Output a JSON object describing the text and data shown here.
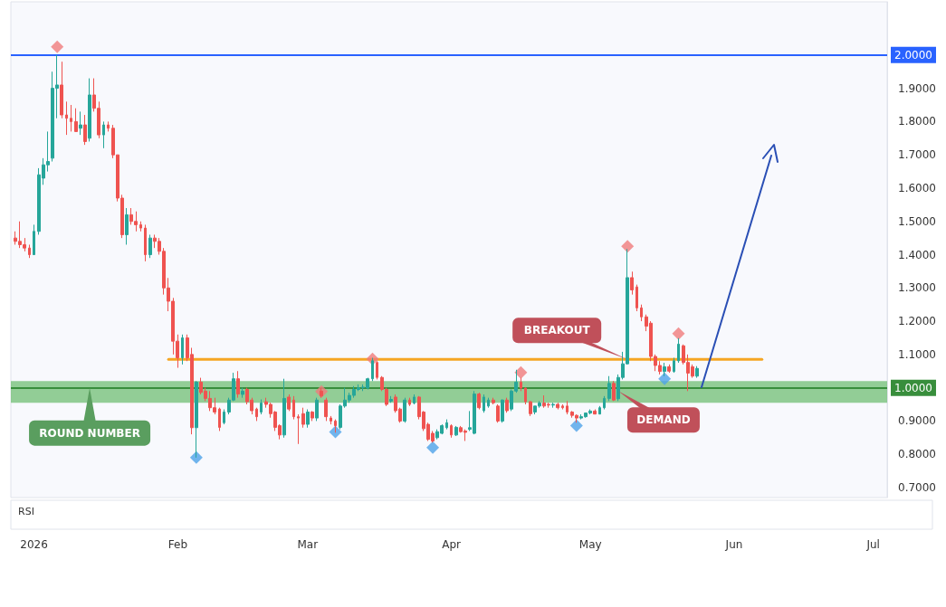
{
  "chart_data": {
    "type": "candlestick",
    "xlim": [
      "2025-12-27",
      "2026-07-04"
    ],
    "xticks": [
      {
        "value": "2026-01-01",
        "label": "2026"
      },
      {
        "value": "2026-02-01",
        "label": "Feb"
      },
      {
        "value": "2026-03-01",
        "label": "Mar"
      },
      {
        "value": "2026-04-01",
        "label": "Apr"
      },
      {
        "value": "2026-05-01",
        "label": "May"
      },
      {
        "value": "2026-06-01",
        "label": "Jun"
      },
      {
        "value": "2026-07-01",
        "label": "Jul"
      }
    ],
    "ylim": [
      0.67,
      2.16
    ],
    "yticks": [
      {
        "value": 0.7,
        "label": "0.7000"
      },
      {
        "value": 0.8,
        "label": "0.8000"
      },
      {
        "value": 0.9,
        "label": "0.9000"
      },
      {
        "value": 1.1,
        "label": "1.1000"
      },
      {
        "value": 1.2,
        "label": "1.2000"
      },
      {
        "value": 1.3,
        "label": "1.3000"
      },
      {
        "value": 1.4,
        "label": "1.4000"
      },
      {
        "value": 1.5,
        "label": "1.5000"
      },
      {
        "value": 1.6,
        "label": "1.6000"
      },
      {
        "value": 1.7,
        "label": "1.7000"
      },
      {
        "value": 1.8,
        "label": "1.8000"
      },
      {
        "value": 1.9,
        "label": "1.9000"
      }
    ],
    "series": [
      {
        "x": [
          "2025-12-28",
          "2025-12-29",
          "2025-12-30",
          "2025-12-31",
          "2026-01-01",
          "2026-01-02",
          "2026-01-03",
          "2026-01-04",
          "2026-01-05",
          "2026-01-06",
          "2026-01-07",
          "2026-01-08",
          "2026-01-09",
          "2026-01-10",
          "2026-01-11",
          "2026-01-12",
          "2026-01-13",
          "2026-01-14",
          "2026-01-15",
          "2026-01-16",
          "2026-01-17",
          "2026-01-18",
          "2026-01-19",
          "2026-01-20",
          "2026-01-21",
          "2026-01-22",
          "2026-01-23",
          "2026-01-24",
          "2026-01-25",
          "2026-01-26",
          "2026-01-27",
          "2026-01-28",
          "2026-01-29",
          "2026-01-30",
          "2026-01-31",
          "2026-02-01",
          "2026-02-02",
          "2026-02-03",
          "2026-02-04",
          "2026-02-05",
          "2026-02-06",
          "2026-02-07",
          "2026-02-08",
          "2026-02-09",
          "2026-02-10",
          "2026-02-11",
          "2026-02-12",
          "2026-02-13",
          "2026-02-14",
          "2026-02-15",
          "2026-02-16",
          "2026-02-17",
          "2026-02-18",
          "2026-02-19",
          "2026-02-20",
          "2026-02-21",
          "2026-02-22",
          "2026-02-23",
          "2026-02-24",
          "2026-02-25",
          "2026-02-26",
          "2026-02-27",
          "2026-02-28",
          "2026-03-01",
          "2026-03-02",
          "2026-03-03",
          "2026-03-04",
          "2026-03-05",
          "2026-03-06",
          "2026-03-07",
          "2026-03-08",
          "2026-03-09",
          "2026-03-10",
          "2026-03-11",
          "2026-03-12",
          "2026-03-13",
          "2026-03-14",
          "2026-03-15",
          "2026-03-16",
          "2026-03-17",
          "2026-03-18",
          "2026-03-19",
          "2026-03-20",
          "2026-03-21",
          "2026-03-22",
          "2026-03-23",
          "2026-03-24",
          "2026-03-25",
          "2026-03-26",
          "2026-03-27",
          "2026-03-28",
          "2026-03-29",
          "2026-03-30",
          "2026-03-31",
          "2026-04-01",
          "2026-04-02",
          "2026-04-03",
          "2026-04-04",
          "2026-04-05",
          "2026-04-06",
          "2026-04-07",
          "2026-04-08",
          "2026-04-09",
          "2026-04-10",
          "2026-04-11",
          "2026-04-12",
          "2026-04-13",
          "2026-04-14",
          "2026-04-15",
          "2026-04-16",
          "2026-04-17",
          "2026-04-18",
          "2026-04-19",
          "2026-04-20",
          "2026-04-21",
          "2026-04-22",
          "2026-04-23",
          "2026-04-24",
          "2026-04-25",
          "2026-04-26",
          "2026-04-27",
          "2026-04-28",
          "2026-04-29",
          "2026-04-30",
          "2026-05-01",
          "2026-05-02",
          "2026-05-03",
          "2026-05-04",
          "2026-05-05",
          "2026-05-06",
          "2026-05-07",
          "2026-05-08",
          "2026-05-09",
          "2026-05-10",
          "2026-05-11",
          "2026-05-12",
          "2026-05-13",
          "2026-05-14",
          "2026-05-15",
          "2026-05-16",
          "2026-05-17",
          "2026-05-18",
          "2026-05-19",
          "2026-05-20",
          "2026-05-21",
          "2026-05-22",
          "2026-05-23",
          "2026-05-24"
        ],
        "ohlc": [
          [
            1.45,
            1.47,
            1.43,
            1.44
          ],
          [
            1.44,
            1.5,
            1.42,
            1.43
          ],
          [
            1.43,
            1.45,
            1.41,
            1.42
          ],
          [
            1.42,
            1.43,
            1.39,
            1.4
          ],
          [
            1.4,
            1.49,
            1.4,
            1.47
          ],
          [
            1.47,
            1.66,
            1.46,
            1.64
          ],
          [
            1.63,
            1.69,
            1.61,
            1.67
          ],
          [
            1.67,
            1.77,
            1.65,
            1.68
          ],
          [
            1.69,
            1.95,
            1.68,
            1.9
          ],
          [
            1.9,
            2.0,
            1.81,
            1.91
          ],
          [
            1.91,
            1.98,
            1.81,
            1.82
          ],
          [
            1.82,
            1.86,
            1.76,
            1.81
          ],
          [
            1.81,
            1.85,
            1.77,
            1.8
          ],
          [
            1.8,
            1.84,
            1.77,
            1.77
          ],
          [
            1.78,
            1.83,
            1.76,
            1.79
          ],
          [
            1.79,
            1.82,
            1.73,
            1.74
          ],
          [
            1.75,
            1.93,
            1.74,
            1.88
          ],
          [
            1.88,
            1.93,
            1.83,
            1.84
          ],
          [
            1.84,
            1.86,
            1.75,
            1.76
          ],
          [
            1.76,
            1.8,
            1.72,
            1.79
          ],
          [
            1.79,
            1.8,
            1.77,
            1.78
          ],
          [
            1.78,
            1.79,
            1.69,
            1.7
          ],
          [
            1.7,
            1.7,
            1.56,
            1.57
          ],
          [
            1.57,
            1.58,
            1.45,
            1.46
          ],
          [
            1.46,
            1.54,
            1.43,
            1.52
          ],
          [
            1.52,
            1.54,
            1.49,
            1.5
          ],
          [
            1.5,
            1.53,
            1.47,
            1.49
          ],
          [
            1.49,
            1.5,
            1.47,
            1.48
          ],
          [
            1.48,
            1.49,
            1.38,
            1.4
          ],
          [
            1.4,
            1.46,
            1.39,
            1.45
          ],
          [
            1.45,
            1.46,
            1.42,
            1.44
          ],
          [
            1.44,
            1.45,
            1.4,
            1.41
          ],
          [
            1.41,
            1.42,
            1.28,
            1.3
          ],
          [
            1.3,
            1.33,
            1.23,
            1.26
          ],
          [
            1.26,
            1.27,
            1.1,
            1.14
          ],
          [
            1.14,
            1.16,
            1.06,
            1.09
          ],
          [
            1.09,
            1.16,
            1.07,
            1.15
          ],
          [
            1.15,
            1.16,
            1.08,
            1.09
          ],
          [
            1.1,
            1.12,
            0.86,
            0.88
          ],
          [
            0.88,
            1.02,
            0.79,
            1.017
          ],
          [
            1.017,
            1.03,
            0.98,
            0.986
          ],
          [
            0.99,
            1.0,
            0.96,
            0.968
          ],
          [
            0.968,
            0.99,
            0.93,
            0.94
          ],
          [
            0.94,
            0.97,
            0.92,
            0.927
          ],
          [
            0.936,
            0.94,
            0.87,
            0.881
          ],
          [
            0.895,
            0.935,
            0.89,
            0.927
          ],
          [
            0.927,
            0.97,
            0.92,
            0.963
          ],
          [
            0.963,
            1.045,
            0.96,
            1.027
          ],
          [
            1.027,
            1.05,
            0.97,
            0.981
          ],
          [
            0.98,
            1.0,
            0.97,
            0.99
          ],
          [
            0.995,
            1.0,
            0.95,
            0.958
          ],
          [
            0.963,
            0.97,
            0.92,
            0.931
          ],
          [
            0.936,
            0.94,
            0.9,
            0.913
          ],
          [
            0.927,
            0.965,
            0.92,
            0.954
          ],
          [
            0.958,
            0.97,
            0.94,
            0.95
          ],
          [
            0.95,
            0.955,
            0.91,
            0.922
          ],
          [
            0.927,
            0.93,
            0.87,
            0.881
          ],
          [
            0.886,
            0.89,
            0.845,
            0.858
          ],
          [
            0.858,
            1.027,
            0.85,
            0.968
          ],
          [
            0.972,
            0.98,
            0.93,
            0.936
          ],
          [
            0.963,
            0.975,
            0.905,
            0.913
          ],
          [
            0.913,
            0.92,
            0.831,
            0.909
          ],
          [
            0.922,
            0.94,
            0.88,
            0.89
          ],
          [
            0.89,
            0.935,
            0.88,
            0.927
          ],
          [
            0.927,
            0.93,
            0.9,
            0.909
          ],
          [
            0.909,
            0.97,
            0.9,
            0.963
          ],
          [
            0.99,
            1.0,
            0.97,
            0.975
          ],
          [
            0.963,
            0.97,
            0.9,
            0.913
          ],
          [
            0.909,
            0.915,
            0.89,
            0.9
          ],
          [
            0.9,
            0.905,
            0.865,
            0.886
          ],
          [
            0.881,
            0.95,
            0.875,
            0.945
          ],
          [
            0.945,
            1.0,
            0.94,
            0.963
          ],
          [
            0.963,
            0.985,
            0.955,
            0.977
          ],
          [
            0.977,
            1.005,
            0.97,
            0.995
          ],
          [
            0.995,
            1.01,
            0.99,
            1.0
          ],
          [
            1.0,
            1.01,
            0.99,
            1.002
          ],
          [
            0.999,
            1.03,
            0.995,
            1.027
          ],
          [
            1.027,
            1.09,
            1.02,
            1.081
          ],
          [
            1.076,
            1.08,
            1.025,
            1.031
          ],
          [
            1.031,
            1.035,
            0.99,
            0.995
          ],
          [
            0.995,
            1.0,
            0.945,
            0.95
          ],
          [
            0.96,
            0.975,
            0.955,
            0.965
          ],
          [
            0.972,
            0.98,
            0.925,
            0.931
          ],
          [
            0.936,
            0.94,
            0.895,
            0.9
          ],
          [
            0.9,
            0.97,
            0.895,
            0.963
          ],
          [
            0.963,
            0.97,
            0.945,
            0.95
          ],
          [
            0.954,
            0.98,
            0.95,
            0.972
          ],
          [
            0.972,
            0.975,
            0.905,
            0.913
          ],
          [
            0.927,
            0.93,
            0.87,
            0.877
          ],
          [
            0.89,
            0.895,
            0.84,
            0.845
          ],
          [
            0.863,
            0.87,
            0.835,
            0.84
          ],
          [
            0.85,
            0.875,
            0.845,
            0.868
          ],
          [
            0.863,
            0.89,
            0.86,
            0.886
          ],
          [
            0.88,
            0.905,
            0.875,
            0.895
          ],
          [
            0.886,
            0.89,
            0.85,
            0.858
          ],
          [
            0.858,
            0.885,
            0.855,
            0.881
          ],
          [
            0.88,
            0.885,
            0.865,
            0.868
          ],
          [
            0.87,
            0.875,
            0.84,
            0.866
          ],
          [
            0.875,
            0.93,
            0.87,
            0.88
          ],
          [
            0.863,
            0.99,
            0.86,
            0.981
          ],
          [
            0.981,
            0.985,
            0.935,
            0.94
          ],
          [
            0.931,
            0.98,
            0.925,
            0.972
          ],
          [
            0.945,
            0.97,
            0.94,
            0.963
          ],
          [
            0.963,
            0.97,
            0.95,
            0.955
          ],
          [
            0.945,
            0.95,
            0.895,
            0.9
          ],
          [
            0.9,
            0.965,
            0.895,
            0.963
          ],
          [
            0.963,
            0.97,
            0.925,
            0.931
          ],
          [
            0.936,
            0.995,
            0.93,
            0.99
          ],
          [
            0.99,
            1.054,
            0.985,
            1.017
          ],
          [
            1.017,
            1.03,
            0.99,
            0.999
          ],
          [
            0.999,
            1.0,
            0.95,
            0.958
          ],
          [
            0.958,
            0.96,
            0.915,
            0.922
          ],
          [
            0.927,
            0.945,
            0.92,
            0.945
          ],
          [
            0.945,
            0.96,
            0.94,
            0.954
          ],
          [
            0.954,
            0.977,
            0.94,
            0.945
          ],
          [
            0.95,
            0.955,
            0.94,
            0.948
          ],
          [
            0.948,
            0.955,
            0.94,
            0.95
          ],
          [
            0.95,
            0.955,
            0.935,
            0.94
          ],
          [
            0.945,
            0.95,
            0.935,
            0.94
          ],
          [
            0.945,
            0.96,
            0.92,
            0.927
          ],
          [
            0.927,
            0.93,
            0.91,
            0.917
          ],
          [
            0.917,
            0.92,
            0.895,
            0.909
          ],
          [
            0.909,
            0.92,
            0.905,
            0.913
          ],
          [
            0.913,
            0.925,
            0.91,
            0.924
          ],
          [
            0.924,
            0.935,
            0.92,
            0.93
          ],
          [
            0.93,
            0.935,
            0.92,
            0.921
          ],
          [
            0.921,
            0.945,
            0.92,
            0.94
          ],
          [
            0.94,
            0.975,
            0.935,
            0.968
          ],
          [
            0.968,
            1.035,
            0.96,
            1.013
          ],
          [
            1.013,
            1.02,
            0.96,
            0.963
          ],
          [
            0.967,
            1.04,
            0.96,
            1.031
          ],
          [
            1.031,
            1.108,
            1.025,
            1.072
          ],
          [
            1.072,
            1.417,
            1.07,
            1.331
          ],
          [
            1.331,
            1.349,
            1.28,
            1.294
          ],
          [
            1.303,
            1.31,
            1.23,
            1.24
          ],
          [
            1.24,
            1.25,
            1.2,
            1.213
          ],
          [
            1.213,
            1.22,
            1.17,
            1.185
          ],
          [
            1.194,
            1.2,
            1.08,
            1.094
          ],
          [
            1.094,
            1.1,
            1.05,
            1.067
          ],
          [
            1.067,
            1.08,
            1.04,
            1.049
          ],
          [
            1.049,
            1.075,
            1.035,
            1.063
          ],
          [
            1.063,
            1.07,
            1.045,
            1.05
          ],
          [
            1.049,
            1.09,
            1.045,
            1.081
          ],
          [
            1.081,
            1.149,
            1.075,
            1.131
          ],
          [
            1.126,
            1.13,
            1.07,
            1.076
          ],
          [
            1.076,
            1.1,
            0.99,
            1.044
          ],
          [
            1.063,
            1.07,
            1.03,
            1.035
          ],
          [
            1.035,
            1.065,
            1.03,
            1.058
          ]
        ]
      },
      {
        "type": "line",
        "color": "#f5a623",
        "x": [
          "2026-01-30",
          "2026-06-07"
        ],
        "values": [
          1.085,
          1.085
        ]
      },
      {
        "type": "scatter",
        "color": "#f07c7c",
        "marker": "diamond",
        "x": [
          "2026-01-06",
          "2026-03-04",
          "2026-03-15",
          "2026-04-16",
          "2026-05-09",
          "2026-05-20"
        ],
        "values": [
          2.025,
          0.989,
          1.087,
          1.046,
          1.425,
          1.163
        ]
      },
      {
        "type": "scatter",
        "color": "#4da3e8",
        "marker": "diamond",
        "x": [
          "2026-02-05",
          "2026-03-07",
          "2026-03-28",
          "2026-04-28",
          "2026-05-17"
        ],
        "values": [
          0.79,
          0.867,
          0.82,
          0.886,
          1.027
        ]
      }
    ],
    "bands": [
      {
        "axis": "y",
        "from": 0.955,
        "to": 1.02,
        "color": "#66bb6a"
      }
    ],
    "ref_lines": [
      {
        "axis": "y",
        "value": 2.0,
        "label": "2.0000",
        "color": "#2962ff"
      },
      {
        "axis": "y",
        "value": 1.0,
        "label": "1.0000",
        "color": "#388e3c"
      }
    ],
    "annotations": [
      {
        "text": "ROUND NUMBER",
        "x": "2026-01-13",
        "y": 1.0
      },
      {
        "text": "BREAKOUT",
        "x": "2026-05-09",
        "y": 1.085
      },
      {
        "text": "DEMAND",
        "x": "2026-05-07",
        "y": 0.99
      },
      "RSI"
    ]
  }
}
